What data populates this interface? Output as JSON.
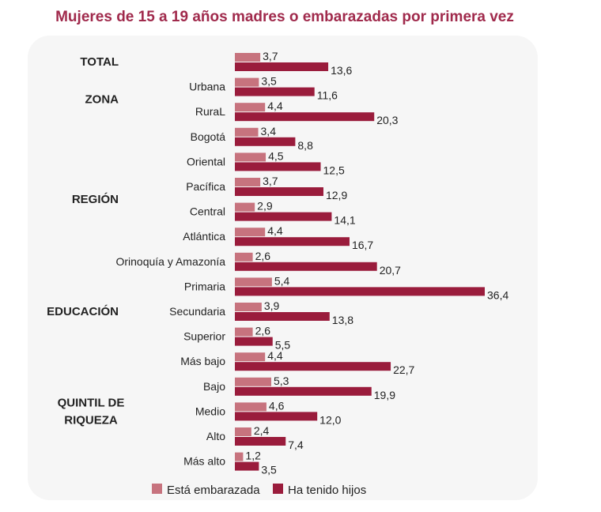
{
  "chart_data": {
    "type": "bar",
    "orientation": "horizontal",
    "title": "Mujeres de 15 a 19 años madres o embarazadas por primera vez",
    "groups": [
      {
        "label": "TOTAL",
        "label_lines": [
          "TOTAL"
        ],
        "categories": [
          ""
        ],
        "start": 0,
        "count": 1
      },
      {
        "label": "ZONA",
        "label_lines": [
          "ZONA"
        ],
        "categories": [
          "Urbana",
          "RuraL"
        ],
        "start": 1,
        "count": 2
      },
      {
        "label": "REGIÓN",
        "label_lines": [
          "REGIÓN"
        ],
        "categories": [
          "Bogotá",
          "Oriental",
          "Pacífica",
          "Central",
          "Atlántica",
          "Orinoquía y Amazonía"
        ],
        "start": 3,
        "count": 6
      },
      {
        "label": "EDUCACIÓN",
        "label_lines": [
          "EDUCACIÓN"
        ],
        "categories": [
          "Primaria",
          "Secundaria",
          "Superior"
        ],
        "start": 9,
        "count": 3
      },
      {
        "label": "QUINTIL DE RIQUEZA",
        "label_lines": [
          "QUINTIL DE",
          "RIQUEZA"
        ],
        "categories": [
          "Más bajo",
          "Bajo",
          "Medio",
          "Alto",
          "Más alto"
        ],
        "start": 12,
        "count": 5
      }
    ],
    "categories": [
      "",
      "Urbana",
      "RuraL",
      "Bogotá",
      "Oriental",
      "Pacífica",
      "Central",
      "Atlántica",
      "Orinoquía y Amazonía",
      "Primaria",
      "Secundaria",
      "Superior",
      "Más bajo",
      "Bajo",
      "Medio",
      "Alto",
      "Más alto"
    ],
    "series": [
      {
        "name": "Está embarazada",
        "color": "#c7737e",
        "values": [
          3.7,
          3.5,
          4.4,
          3.4,
          4.5,
          3.7,
          2.9,
          4.4,
          2.6,
          5.4,
          3.9,
          2.6,
          4.4,
          5.3,
          4.6,
          2.4,
          1.2
        ],
        "labels": [
          "3,7",
          "3,5",
          "4,4",
          "3,4",
          "4,5",
          "3,7",
          "2,9",
          "4,4",
          "2,6",
          "5,4",
          "3,9",
          "2,6",
          "4,4",
          "5,3",
          "4,6",
          "2,4",
          "1,2"
        ]
      },
      {
        "name": "Ha tenido hijos",
        "color": "#9a1c3c",
        "values": [
          13.6,
          11.6,
          20.3,
          8.8,
          12.5,
          12.9,
          14.1,
          16.7,
          20.7,
          36.4,
          13.8,
          5.5,
          22.7,
          19.9,
          12.0,
          7.4,
          3.5
        ],
        "labels": [
          "13,6",
          "11,6",
          "20,3",
          "8,8",
          "12,5",
          "12,9",
          "14,1",
          "16,7",
          "20,7",
          "36,4",
          "13,8",
          "5,5",
          "22,7",
          "19,9",
          "12,0",
          "7,4",
          "3,5"
        ]
      }
    ],
    "xlim": [
      0,
      40
    ],
    "grid": false,
    "legend_position": "bottom",
    "title_color": "#a02a4c"
  }
}
